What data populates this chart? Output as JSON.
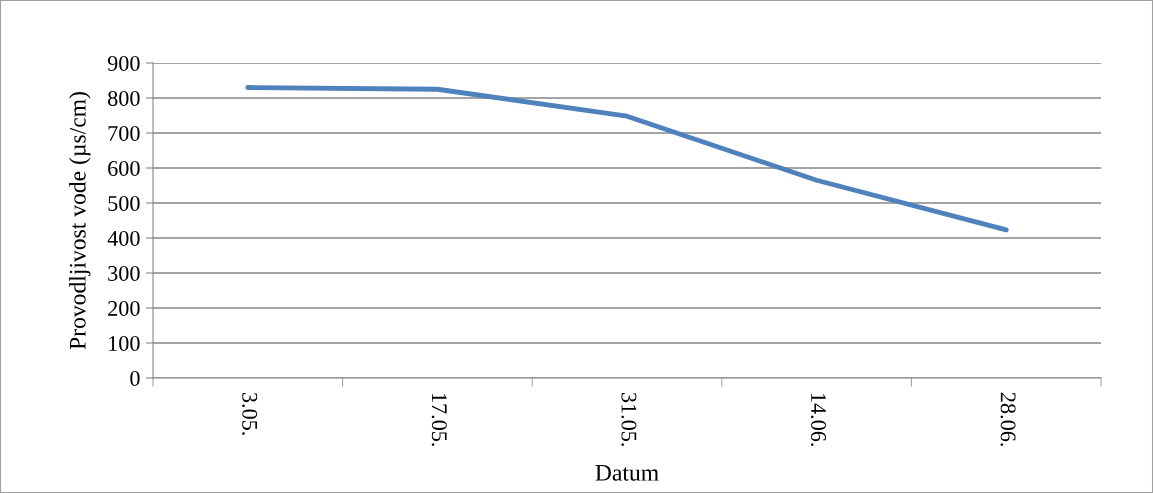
{
  "chart_data": {
    "type": "line",
    "xlabel": "Datum",
    "ylabel": "Provodljivost vode (µs/cm)",
    "categories": [
      "3.05.",
      "17.05.",
      "31.05.",
      "14.06.",
      "28.06."
    ],
    "series": [
      {
        "color": "#4f81bd",
        "values": [
          830,
          825,
          748,
          565,
          423
        ]
      }
    ],
    "ylim": [
      0,
      900
    ],
    "yticks": [
      0,
      100,
      200,
      300,
      400,
      500,
      600,
      700,
      800,
      900
    ],
    "grid": "y",
    "marker": "none",
    "line_style": "solid"
  }
}
